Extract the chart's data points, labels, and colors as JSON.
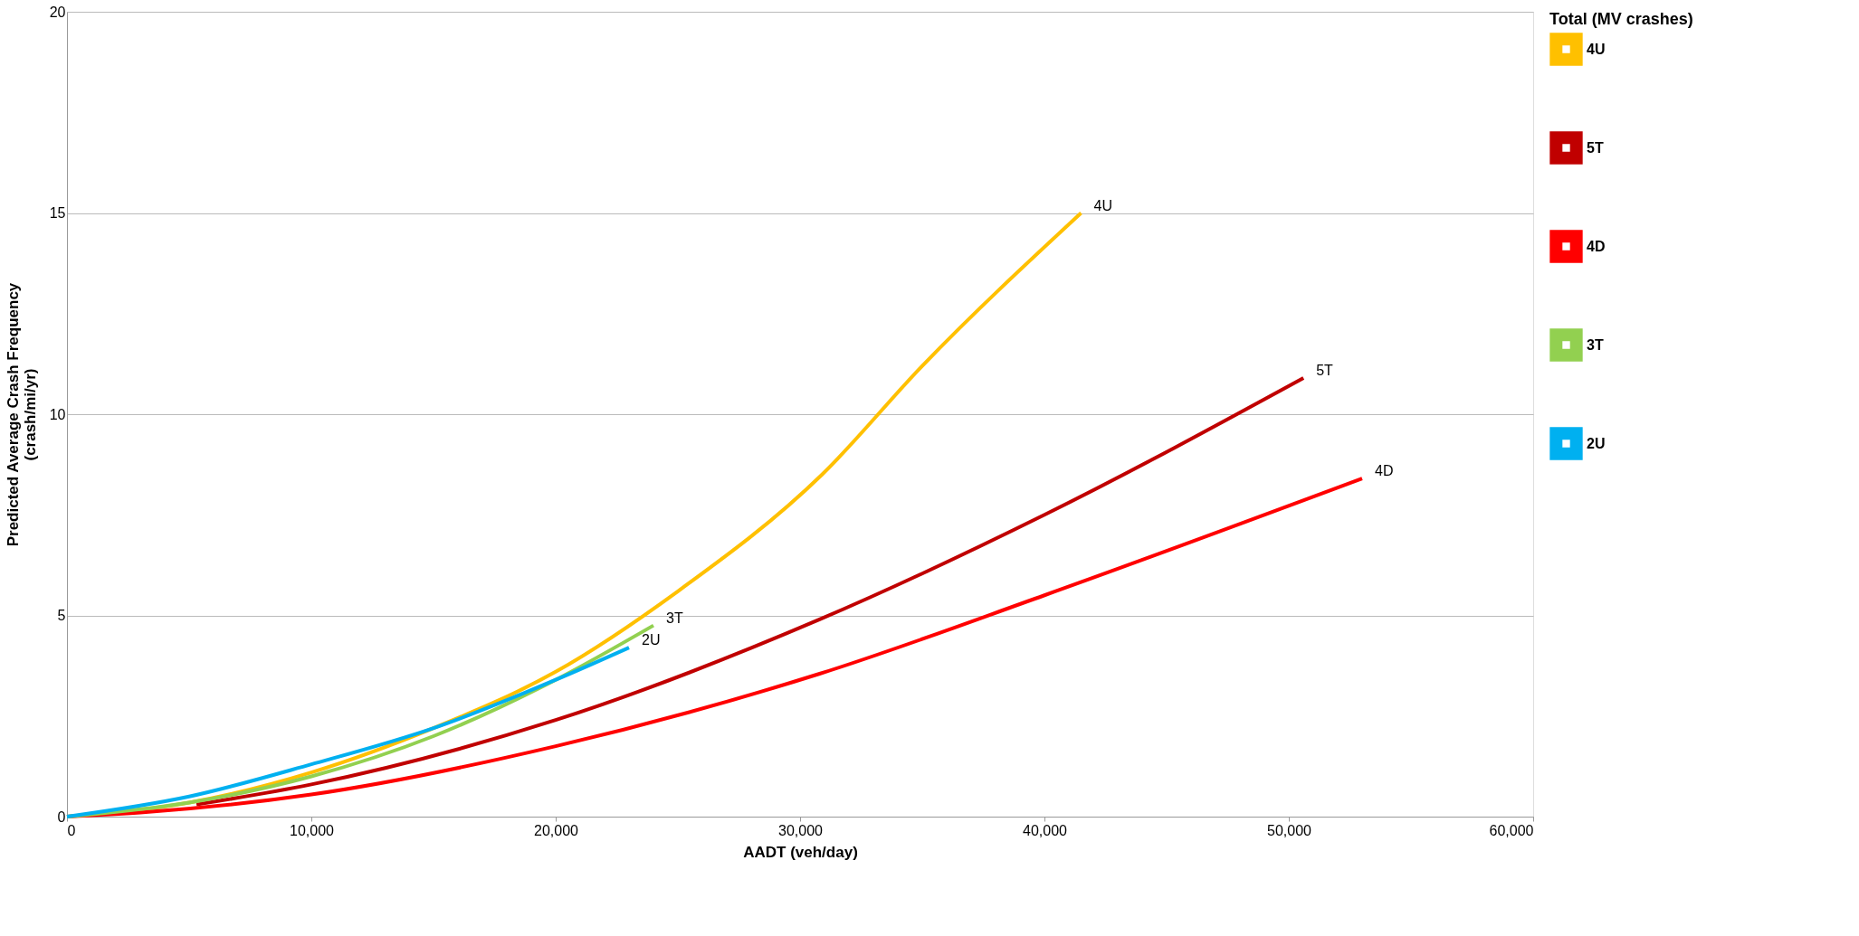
{
  "chart_data": {
    "type": "line",
    "xlabel": "AADT (veh/day)",
    "ylabel": "Predicted Average Crash Frequency (crash/mi/yr)",
    "legend_title": "Total (MV crashes)",
    "xlim": [
      0,
      60000
    ],
    "xticks": [
      {
        "value": 0,
        "label": "0"
      },
      {
        "value": 10000,
        "label": "10,000"
      },
      {
        "value": 20000,
        "label": "20,000"
      },
      {
        "value": 30000,
        "label": "30,000"
      },
      {
        "value": 40000,
        "label": "40,000"
      },
      {
        "value": 50000,
        "label": "50,000"
      },
      {
        "value": 60000,
        "label": "60,000"
      }
    ],
    "ylim": [
      0,
      20
    ],
    "yticks": [
      0,
      5,
      10,
      15,
      20
    ],
    "grid": "y",
    "legend": "right",
    "marker": "none",
    "line_style": "solid",
    "series": [
      {
        "name": "4U",
        "color": "#ffc000",
        "x": [
          0,
          5000,
          10000,
          15000,
          20000,
          25000,
          30900,
          35000,
          41500
        ],
        "values": [
          0,
          0.35,
          1.1,
          2.2,
          3.6,
          5.6,
          8.5,
          11.2,
          15.0
        ]
      },
      {
        "name": "5T",
        "color": "#c00000",
        "x": [
          5300,
          10000,
          20000,
          30800,
          40000,
          50600
        ],
        "values": [
          0.3,
          0.8,
          2.4,
          4.9,
          7.5,
          10.9
        ]
      },
      {
        "name": "4D",
        "color": "#ff0000",
        "x": [
          0,
          3000,
          10000,
          20000,
          30800,
          40000,
          53000
        ],
        "values": [
          0,
          0.1,
          0.55,
          1.75,
          3.55,
          5.5,
          8.4
        ]
      },
      {
        "name": "3T",
        "color": "#92d050",
        "x": [
          0,
          5000,
          10000,
          15000,
          20000,
          24000
        ],
        "values": [
          0,
          0.35,
          1.0,
          2.0,
          3.4,
          4.75
        ]
      },
      {
        "name": "2U",
        "color": "#00b0f0",
        "x": [
          0,
          5000,
          10000,
          15000,
          20000,
          23000
        ],
        "values": [
          0,
          0.5,
          1.3,
          2.2,
          3.4,
          4.2
        ]
      }
    ]
  }
}
